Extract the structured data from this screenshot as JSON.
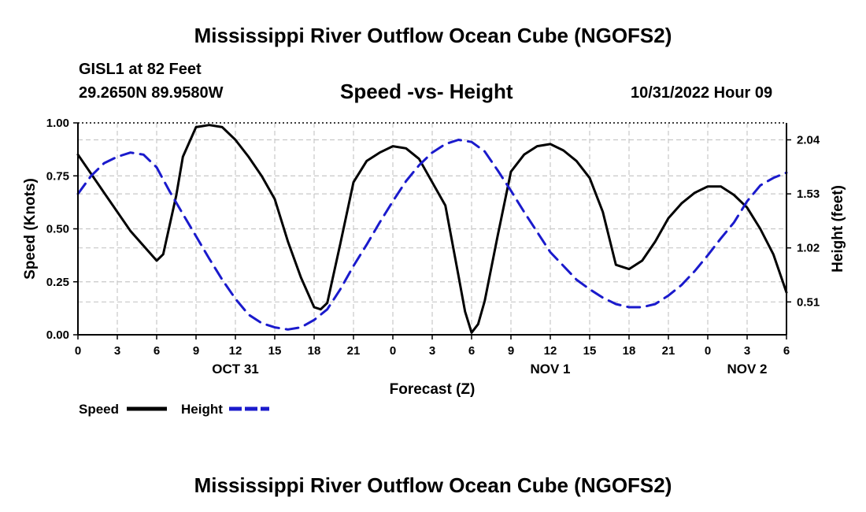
{
  "page": {
    "title": "Mississippi River Outflow Ocean Cube (NGOFS2)",
    "title_repeat": "Mississippi River Outflow Ocean Cube (NGOFS2)",
    "station": "GISL1 at 82 Feet",
    "coords": "29.2650N  89.9580W",
    "subtitle": "Speed -vs- Height",
    "datetime": "10/31/2022 Hour 09"
  },
  "chart_data": {
    "type": "line",
    "title": "Speed -vs- Height",
    "xlabel": "Forecast (Z)",
    "ylabel": "Speed (Knots)",
    "y2label": "Height (feet)",
    "x_range": [
      0,
      54
    ],
    "ylim": [
      0,
      1.0
    ],
    "y2lim": [
      0.2,
      2.2
    ],
    "grid": true,
    "x_ticks": [
      0,
      3,
      6,
      9,
      12,
      15,
      18,
      21,
      24,
      27,
      30,
      33,
      36,
      39,
      42,
      45,
      48,
      51,
      54
    ],
    "x_tick_labels": [
      "0",
      "3",
      "6",
      "9",
      "12",
      "15",
      "18",
      "21",
      "0",
      "3",
      "6",
      "9",
      "12",
      "15",
      "18",
      "21",
      "0",
      "3",
      "6"
    ],
    "date_labels": [
      {
        "x": 12,
        "label": "OCT 31"
      },
      {
        "x": 36,
        "label": "NOV 1"
      },
      {
        "x": 51,
        "label": "NOV 2"
      }
    ],
    "y_ticks": [
      0.0,
      0.25,
      0.5,
      0.75,
      1.0
    ],
    "y_tick_labels": [
      "0.00",
      "0.25",
      "0.50",
      "0.75",
      "1.00"
    ],
    "y2_ticks": [
      0.51,
      1.02,
      1.53,
      2.04
    ],
    "y2_tick_labels": [
      "0.51",
      "1.02",
      "1.53",
      "2.04"
    ],
    "legend": [
      {
        "label": "Speed",
        "color": "#000000",
        "dash": false
      },
      {
        "label": "Height",
        "color": "#1a1acc",
        "dash": true
      }
    ],
    "series": [
      {
        "name": "Speed",
        "axis": "left",
        "color": "#000000",
        "x": [
          0,
          2,
          4,
          6,
          6.5,
          7.5,
          8,
          9,
          10,
          11,
          12,
          13,
          14,
          15,
          16,
          17,
          18,
          18.5,
          19,
          20,
          21,
          22,
          23,
          24,
          25,
          26,
          27,
          28,
          29,
          29.5,
          30,
          30.5,
          31,
          32,
          33,
          34,
          35,
          36,
          37,
          38,
          39,
          40,
          41,
          42,
          43,
          44,
          45,
          46,
          47,
          48,
          49,
          50,
          51,
          52,
          53,
          54
        ],
        "y": [
          0.85,
          0.67,
          0.49,
          0.35,
          0.38,
          0.66,
          0.84,
          0.98,
          0.99,
          0.98,
          0.92,
          0.84,
          0.75,
          0.64,
          0.44,
          0.27,
          0.13,
          0.12,
          0.15,
          0.43,
          0.72,
          0.82,
          0.86,
          0.89,
          0.88,
          0.83,
          0.72,
          0.61,
          0.28,
          0.11,
          0.01,
          0.05,
          0.16,
          0.47,
          0.77,
          0.85,
          0.89,
          0.9,
          0.87,
          0.82,
          0.74,
          0.58,
          0.33,
          0.31,
          0.35,
          0.44,
          0.55,
          0.62,
          0.67,
          0.7,
          0.7,
          0.66,
          0.6,
          0.5,
          0.38,
          0.2
        ]
      },
      {
        "name": "Height",
        "axis": "right",
        "color": "#1a1acc",
        "x": [
          0,
          1,
          2,
          3,
          4,
          5,
          6,
          7,
          8,
          9,
          10,
          11,
          12,
          13,
          14,
          15,
          16,
          17,
          18,
          19,
          20,
          21,
          22,
          23,
          24,
          25,
          26,
          27,
          28,
          29,
          30,
          31,
          32,
          33,
          34,
          35,
          36,
          37,
          38,
          39,
          40,
          41,
          42,
          43,
          44,
          45,
          46,
          47,
          48,
          49,
          50,
          51,
          52,
          53,
          54
        ],
        "y": [
          1.53,
          1.7,
          1.82,
          1.88,
          1.92,
          1.9,
          1.78,
          1.55,
          1.34,
          1.13,
          0.92,
          0.72,
          0.54,
          0.39,
          0.31,
          0.27,
          0.25,
          0.27,
          0.34,
          0.44,
          0.63,
          0.85,
          1.05,
          1.26,
          1.46,
          1.65,
          1.8,
          1.92,
          2.0,
          2.04,
          2.02,
          1.93,
          1.75,
          1.56,
          1.36,
          1.17,
          0.98,
          0.85,
          0.72,
          0.63,
          0.55,
          0.49,
          0.46,
          0.46,
          0.49,
          0.57,
          0.67,
          0.8,
          0.95,
          1.11,
          1.26,
          1.46,
          1.61,
          1.68,
          1.73
        ]
      }
    ]
  }
}
